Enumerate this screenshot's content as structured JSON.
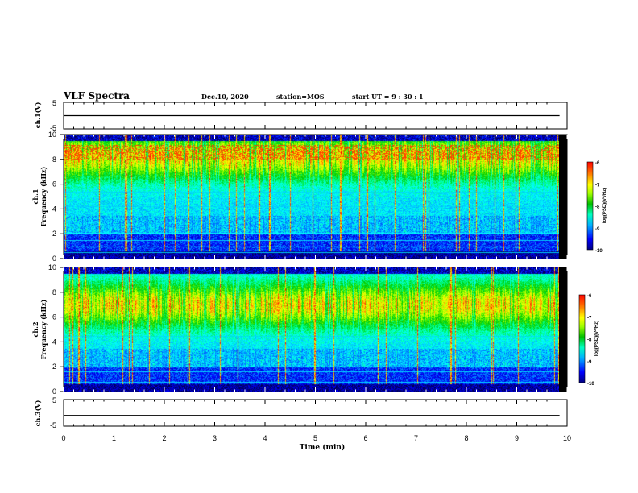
{
  "header": {
    "title": "VLF Spectra",
    "date": "Dec.10, 2020",
    "station": "station=MOS",
    "start": "start  UT =   9 : 30 : 1"
  },
  "colors": {
    "colormap": [
      "#000000",
      "#000080",
      "#0000ff",
      "#00a0ff",
      "#00ffff",
      "#00ff80",
      "#00c800",
      "#80ff00",
      "#ffff00",
      "#ff8000",
      "#ff0000"
    ]
  },
  "chart_data": [
    {
      "type": "line",
      "name": "ch1-waveform",
      "ylabel": "ch.1(V)",
      "ylim": [
        -5,
        5
      ],
      "yticks": [
        "5",
        "-5"
      ],
      "xlim": [
        0,
        10
      ],
      "x": [
        0,
        2,
        4,
        6,
        8,
        9.85
      ],
      "y": [
        0,
        0,
        0,
        0,
        0,
        0
      ]
    },
    {
      "type": "heatmap",
      "name": "ch1-spectrogram",
      "ylabel_top": "ch.1",
      "ylabel": "Frequency (kHz)",
      "ylim": [
        0,
        10
      ],
      "yticks": [
        "0",
        "2",
        "4",
        "6",
        "8",
        "10"
      ],
      "xlim": [
        0,
        10
      ],
      "colorbar": {
        "label": "log(PSD)(V²/Hz)",
        "range": [
          -10,
          -6
        ],
        "ticks": [
          "-6",
          "-7",
          "-8",
          "-9",
          "-10"
        ]
      }
    },
    {
      "type": "heatmap",
      "name": "ch2-spectrogram",
      "ylabel_top": "ch.2",
      "ylabel": "Frequency (kHz)",
      "ylim": [
        0,
        10
      ],
      "yticks": [
        "0",
        "2",
        "4",
        "6",
        "8",
        "10"
      ],
      "xlim": [
        0,
        10
      ],
      "colorbar": {
        "label": "log(PSD)(V²/Hz)",
        "range": [
          -10,
          -6
        ],
        "ticks": [
          "-6",
          "-7",
          "-8",
          "-9",
          "-10"
        ]
      }
    },
    {
      "type": "line",
      "name": "ch3-waveform",
      "ylabel": "ch.3(V)",
      "ylim": [
        -5,
        5
      ],
      "yticks": [
        "5",
        "-5"
      ],
      "xlim": [
        0,
        10
      ],
      "x": [
        0,
        2,
        4,
        6,
        8,
        9.85
      ],
      "y": [
        -1,
        -1,
        -1,
        -1,
        -1,
        -1
      ]
    }
  ],
  "xaxis": {
    "label": "Time (min)",
    "ticks": [
      "0",
      "1",
      "2",
      "3",
      "4",
      "5",
      "6",
      "7",
      "8",
      "9",
      "10"
    ]
  }
}
